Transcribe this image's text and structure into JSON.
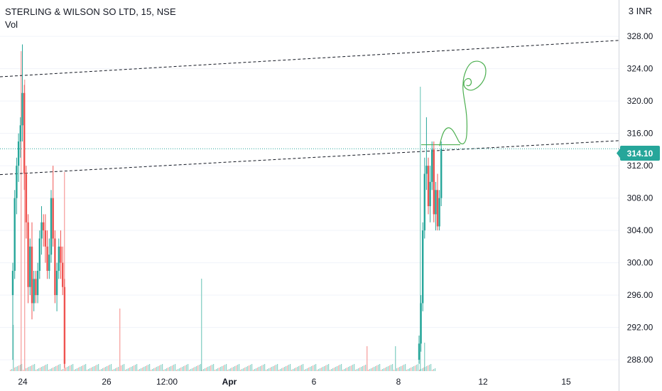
{
  "legend": {
    "title": "STERLING & WILSON SO LTD, 15, NSE",
    "volume_label": "Vol"
  },
  "currency_label": "3 INR",
  "current_price_label": "314.10",
  "colors": {
    "up": "#26a69a",
    "down": "#ef5350",
    "up_volume": "#8fd3c9",
    "down_volume": "#f7a9a7",
    "drawing": "#4caf50",
    "trendline": "#131722",
    "price_line": "#26a69a",
    "axis_border": "#d1d4dc"
  },
  "chart_data": {
    "type": "candlestick",
    "title": "STERLING & WILSON SO LTD, 15, NSE",
    "y_ticks": [
      "328.00",
      "324.00",
      "320.00",
      "316.00",
      "312.00",
      "308.00",
      "304.00",
      "300.00",
      "296.00",
      "292.00",
      "288.00"
    ],
    "y_tick_values": [
      328,
      324,
      320,
      316,
      312,
      308,
      304,
      300,
      296,
      292,
      288
    ],
    "x_ticks": [
      "24",
      "26",
      "12:00",
      "Apr",
      "6",
      "8",
      "12",
      "15"
    ],
    "x_tick_bold": [
      false,
      false,
      false,
      true,
      false,
      false,
      false,
      false
    ],
    "ylim": [
      286.6,
      332.5
    ],
    "current_price": 314.1,
    "trendlines": [
      {
        "from": [
          0,
          323.0
        ],
        "to": [
          871,
          327.5
        ]
      },
      {
        "from": [
          0,
          310.9
        ],
        "to": [
          871,
          315.1
        ]
      }
    ],
    "resistance_segment": {
      "from": [
        593,
        314.6
      ],
      "to": [
        648,
        314.6
      ]
    },
    "candles": [
      {
        "o": 296,
        "h": 300,
        "l": 288,
        "c": 299
      },
      {
        "o": 299,
        "h": 309,
        "l": 298,
        "c": 308
      },
      {
        "o": 308,
        "h": 313,
        "l": 306,
        "c": 312
      },
      {
        "o": 312,
        "h": 316,
        "l": 310,
        "c": 315
      },
      {
        "o": 315,
        "h": 318,
        "l": 313,
        "c": 317
      },
      {
        "o": 317,
        "h": 327,
        "l": 315,
        "c": 321
      },
      {
        "o": 321,
        "h": 322,
        "l": 309,
        "c": 311
      },
      {
        "o": 311,
        "h": 312,
        "l": 303,
        "c": 305
      },
      {
        "o": 305,
        "h": 306,
        "l": 295,
        "c": 297
      },
      {
        "o": 297,
        "h": 303,
        "l": 296,
        "c": 302
      },
      {
        "o": 302,
        "h": 305,
        "l": 293,
        "c": 295
      },
      {
        "o": 295,
        "h": 299,
        "l": 294,
        "c": 298
      },
      {
        "o": 298,
        "h": 299,
        "l": 295,
        "c": 296
      },
      {
        "o": 296,
        "h": 300,
        "l": 295,
        "c": 299
      },
      {
        "o": 299,
        "h": 304,
        "l": 298,
        "c": 303
      },
      {
        "o": 303,
        "h": 307,
        "l": 301,
        "c": 305
      },
      {
        "o": 305,
        "h": 306,
        "l": 302,
        "c": 304
      },
      {
        "o": 304,
        "h": 306,
        "l": 300,
        "c": 302
      },
      {
        "o": 302,
        "h": 304,
        "l": 298,
        "c": 299
      },
      {
        "o": 299,
        "h": 303,
        "l": 298,
        "c": 301
      },
      {
        "o": 301,
        "h": 309,
        "l": 300,
        "c": 308
      },
      {
        "o": 308,
        "h": 312,
        "l": 302,
        "c": 303
      },
      {
        "o": 303,
        "h": 304,
        "l": 295,
        "c": 296
      },
      {
        "o": 296,
        "h": 300,
        "l": 294,
        "c": 299
      },
      {
        "o": 299,
        "h": 303,
        "l": 298,
        "c": 302
      },
      {
        "o": 302,
        "h": 304,
        "l": 298,
        "c": 300
      },
      {
        "o": 300,
        "h": 302,
        "l": 296,
        "c": 297
      },
      {
        "o": 297,
        "h": 298,
        "l": 287,
        "c": 287.5
      }
    ],
    "candles2": [
      {
        "o": 288,
        "h": 291,
        "l": 287.5,
        "c": 290
      },
      {
        "o": 290,
        "h": 296,
        "l": 289,
        "c": 295
      },
      {
        "o": 295,
        "h": 305,
        "l": 294,
        "c": 304
      },
      {
        "o": 304,
        "h": 313,
        "l": 303,
        "c": 311
      },
      {
        "o": 311,
        "h": 318,
        "l": 309,
        "c": 312
      },
      {
        "o": 312,
        "h": 313,
        "l": 306,
        "c": 307
      },
      {
        "o": 307,
        "h": 312,
        "l": 305,
        "c": 310
      },
      {
        "o": 310,
        "h": 315,
        "l": 309,
        "c": 314
      },
      {
        "o": 314,
        "h": 315,
        "l": 305,
        "c": 306
      },
      {
        "o": 306,
        "h": 310,
        "l": 304,
        "c": 309
      },
      {
        "o": 309,
        "h": 311,
        "l": 304,
        "c": 304.5
      },
      {
        "o": 304.5,
        "h": 309,
        "l": 304,
        "c": 308
      },
      {
        "o": 308,
        "h": 315,
        "l": 307,
        "c": 314.1
      }
    ],
    "volume_spikes": [
      {
        "v": 0.3,
        "up": true
      },
      {
        "v": 0.55,
        "up": false
      },
      {
        "v": 1.0,
        "up": false
      },
      {
        "v": 0.65,
        "up": false
      },
      {
        "v": 0.18,
        "up": true
      },
      {
        "v": 0.35,
        "up": false
      }
    ]
  }
}
